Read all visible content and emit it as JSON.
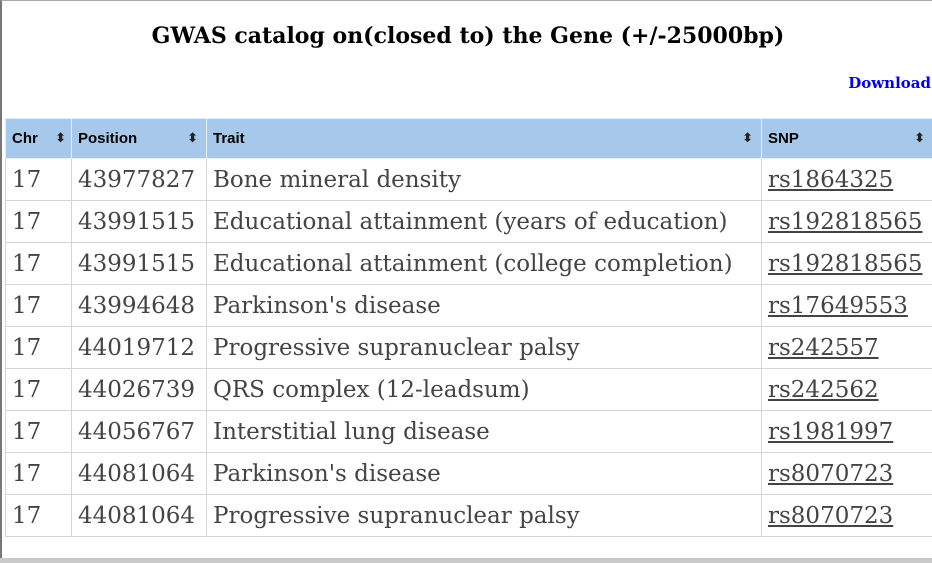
{
  "page": {
    "title": "GWAS catalog on(closed to) the Gene (+/-25000bp)",
    "download_label": "Download"
  },
  "table": {
    "columns": [
      {
        "label": "Chr",
        "sort_icon": "⬍"
      },
      {
        "label": "Position",
        "sort_icon": "⬍"
      },
      {
        "label": "Trait",
        "sort_icon": "⬍"
      },
      {
        "label": "SNP",
        "sort_icon": "⬍"
      }
    ],
    "rows": [
      {
        "chr": "17",
        "position": "43977827",
        "trait": "Bone mineral density",
        "snp": "rs1864325"
      },
      {
        "chr": "17",
        "position": "43991515",
        "trait": "Educational attainment (years of education)",
        "snp": "rs192818565"
      },
      {
        "chr": "17",
        "position": "43991515",
        "trait": "Educational attainment (college completion)",
        "snp": "rs192818565"
      },
      {
        "chr": "17",
        "position": "43994648",
        "trait": "Parkinson's disease",
        "snp": "rs17649553"
      },
      {
        "chr": "17",
        "position": "44019712",
        "trait": "Progressive supranuclear palsy",
        "snp": "rs242557"
      },
      {
        "chr": "17",
        "position": "44026739",
        "trait": "QRS complex (12-leadsum)",
        "snp": "rs242562"
      },
      {
        "chr": "17",
        "position": "44056767",
        "trait": "Interstitial lung disease",
        "snp": "rs1981997"
      },
      {
        "chr": "17",
        "position": "44081064",
        "trait": "Parkinson's disease",
        "snp": "rs8070723"
      },
      {
        "chr": "17",
        "position": "44081064",
        "trait": "Progressive supranuclear palsy",
        "snp": "rs8070723"
      }
    ]
  },
  "colors": {
    "header_bg": "#a6c9eb",
    "link": "#0000ee",
    "cell_text": "#444444"
  }
}
